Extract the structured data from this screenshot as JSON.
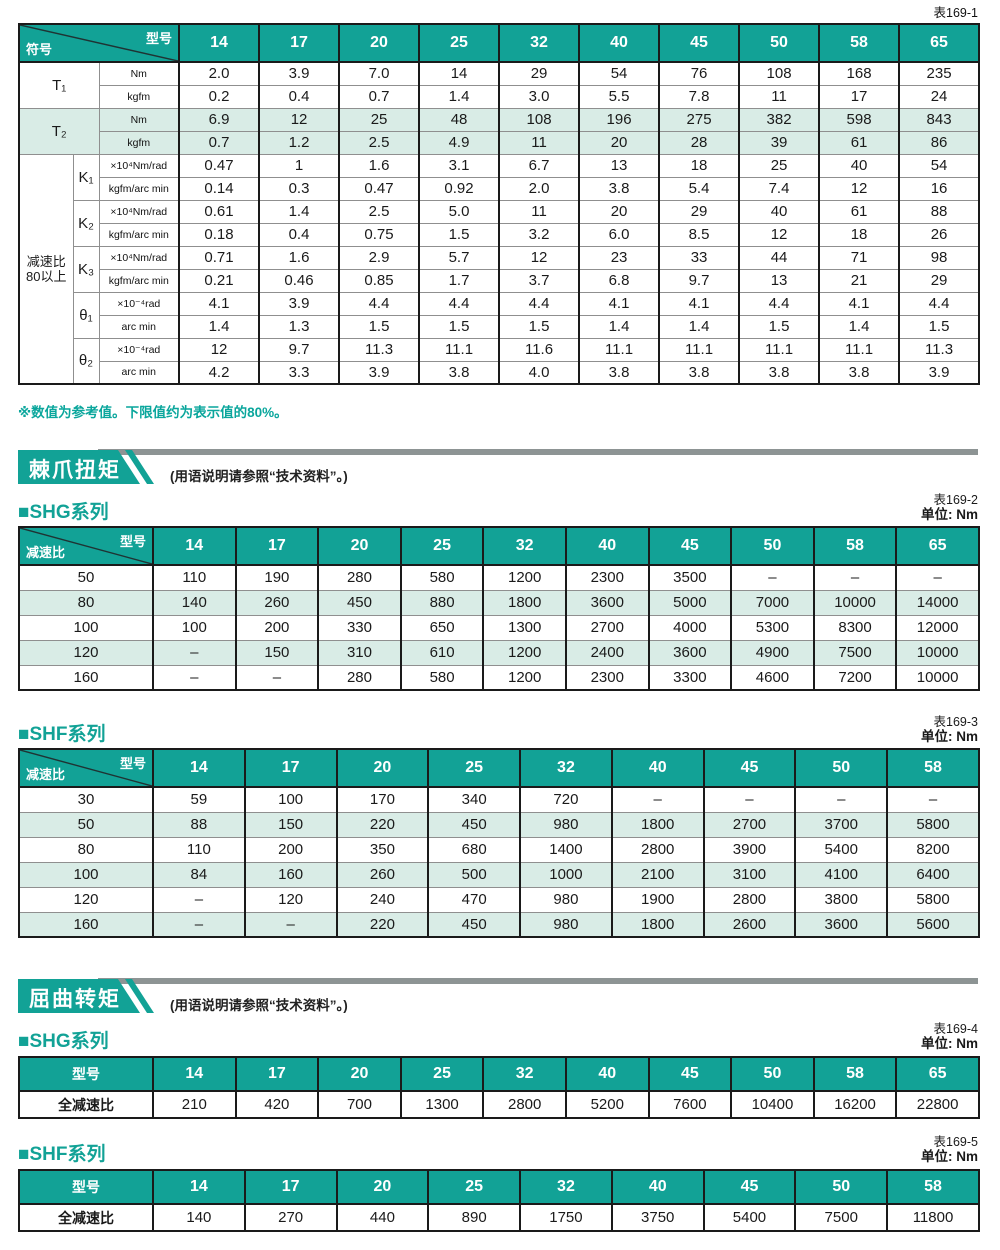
{
  "page": {
    "note": "※数值为参考值。下限值约为表示值的80%。"
  },
  "sections": [
    {
      "title": "棘爪扭矩",
      "note": "(用语说明请参照“技术资料”。)"
    },
    {
      "title": "屈曲转矩",
      "note": "(用语说明请参照“技术资料”。)"
    }
  ],
  "spec_table": {
    "tag": "表169-1",
    "corner_top": "型号",
    "corner_bottom": "符号",
    "models": [
      "14",
      "17",
      "20",
      "25",
      "32",
      "40",
      "45",
      "50",
      "58",
      "65"
    ],
    "row_group_label": [
      "减速比",
      "80以上"
    ],
    "groups": [
      {
        "symbol": "T₁",
        "merged": true,
        "shade": false,
        "rows": [
          {
            "unit": "Nm",
            "values": [
              "2.0",
              "3.9",
              "7.0",
              "14",
              "29",
              "54",
              "76",
              "108",
              "168",
              "235"
            ]
          },
          {
            "unit": "kgfm",
            "values": [
              "0.2",
              "0.4",
              "0.7",
              "1.4",
              "3.0",
              "5.5",
              "7.8",
              "11",
              "17",
              "24"
            ]
          }
        ]
      },
      {
        "symbol": "T₂",
        "merged": true,
        "shade": true,
        "rows": [
          {
            "unit": "Nm",
            "values": [
              "6.9",
              "12",
              "25",
              "48",
              "108",
              "196",
              "275",
              "382",
              "598",
              "843"
            ]
          },
          {
            "unit": "kgfm",
            "values": [
              "0.7",
              "1.2",
              "2.5",
              "4.9",
              "11",
              "20",
              "28",
              "39",
              "61",
              "86"
            ]
          }
        ]
      },
      {
        "symbol": "K₁",
        "merged": false,
        "shade": false,
        "rows": [
          {
            "unit": "×10⁴Nm/rad",
            "values": [
              "0.47",
              "1",
              "1.6",
              "3.1",
              "6.7",
              "13",
              "18",
              "25",
              "40",
              "54"
            ]
          },
          {
            "unit": "kgfm/arc min",
            "values": [
              "0.14",
              "0.3",
              "0.47",
              "0.92",
              "2.0",
              "3.8",
              "5.4",
              "7.4",
              "12",
              "16"
            ]
          }
        ]
      },
      {
        "symbol": "K₂",
        "merged": false,
        "shade": false,
        "rows": [
          {
            "unit": "×10⁴Nm/rad",
            "values": [
              "0.61",
              "1.4",
              "2.5",
              "5.0",
              "11",
              "20",
              "29",
              "40",
              "61",
              "88"
            ]
          },
          {
            "unit": "kgfm/arc min",
            "values": [
              "0.18",
              "0.4",
              "0.75",
              "1.5",
              "3.2",
              "6.0",
              "8.5",
              "12",
              "18",
              "26"
            ]
          }
        ]
      },
      {
        "symbol": "K₃",
        "merged": false,
        "shade": false,
        "rows": [
          {
            "unit": "×10⁴Nm/rad",
            "values": [
              "0.71",
              "1.6",
              "2.9",
              "5.7",
              "12",
              "23",
              "33",
              "44",
              "71",
              "98"
            ]
          },
          {
            "unit": "kgfm/arc min",
            "values": [
              "0.21",
              "0.46",
              "0.85",
              "1.7",
              "3.7",
              "6.8",
              "9.7",
              "13",
              "21",
              "29"
            ]
          }
        ]
      },
      {
        "symbol": "θ₁",
        "merged": false,
        "shade": false,
        "rows": [
          {
            "unit": "×10⁻⁴rad",
            "values": [
              "4.1",
              "3.9",
              "4.4",
              "4.4",
              "4.4",
              "4.1",
              "4.1",
              "4.4",
              "4.1",
              "4.4"
            ]
          },
          {
            "unit": "arc min",
            "values": [
              "1.4",
              "1.3",
              "1.5",
              "1.5",
              "1.5",
              "1.4",
              "1.4",
              "1.5",
              "1.4",
              "1.5"
            ]
          }
        ]
      },
      {
        "symbol": "θ₂",
        "merged": false,
        "shade": false,
        "rows": [
          {
            "unit": "×10⁻⁴rad",
            "values": [
              "12",
              "9.7",
              "11.3",
              "11.1",
              "11.6",
              "11.1",
              "11.1",
              "11.1",
              "11.1",
              "11.3"
            ]
          },
          {
            "unit": "arc min",
            "values": [
              "4.2",
              "3.3",
              "3.9",
              "3.8",
              "4.0",
              "3.8",
              "3.8",
              "3.8",
              "3.8",
              "3.9"
            ]
          }
        ]
      }
    ]
  },
  "ratchet_tables": [
    {
      "tag": "表169-2",
      "unit_label": "单位: Nm",
      "series": "■SHG系列",
      "corner_top": "型号",
      "corner_bottom": "减速比",
      "models": [
        "14",
        "17",
        "20",
        "25",
        "32",
        "40",
        "45",
        "50",
        "58",
        "65"
      ],
      "rows": [
        {
          "ratio": "50",
          "values": [
            "110",
            "190",
            "280",
            "580",
            "1200",
            "2300",
            "3500",
            "–",
            "–",
            "–"
          ]
        },
        {
          "ratio": "80",
          "values": [
            "140",
            "260",
            "450",
            "880",
            "1800",
            "3600",
            "5000",
            "7000",
            "10000",
            "14000"
          ]
        },
        {
          "ratio": "100",
          "values": [
            "100",
            "200",
            "330",
            "650",
            "1300",
            "2700",
            "4000",
            "5300",
            "8300",
            "12000"
          ]
        },
        {
          "ratio": "120",
          "values": [
            "–",
            "150",
            "310",
            "610",
            "1200",
            "2400",
            "3600",
            "4900",
            "7500",
            "10000"
          ]
        },
        {
          "ratio": "160",
          "values": [
            "–",
            "–",
            "280",
            "580",
            "1200",
            "2300",
            "3300",
            "4600",
            "7200",
            "10000"
          ]
        }
      ]
    },
    {
      "tag": "表169-3",
      "unit_label": "单位: Nm",
      "series": "■SHF系列",
      "corner_top": "型号",
      "corner_bottom": "减速比",
      "models": [
        "14",
        "17",
        "20",
        "25",
        "32",
        "40",
        "45",
        "50",
        "58"
      ],
      "rows": [
        {
          "ratio": "30",
          "values": [
            "59",
            "100",
            "170",
            "340",
            "720",
            "–",
            "–",
            "–",
            "–"
          ]
        },
        {
          "ratio": "50",
          "values": [
            "88",
            "150",
            "220",
            "450",
            "980",
            "1800",
            "2700",
            "3700",
            "5800"
          ]
        },
        {
          "ratio": "80",
          "values": [
            "110",
            "200",
            "350",
            "680",
            "1400",
            "2800",
            "3900",
            "5400",
            "8200"
          ]
        },
        {
          "ratio": "100",
          "values": [
            "84",
            "160",
            "260",
            "500",
            "1000",
            "2100",
            "3100",
            "4100",
            "6400"
          ]
        },
        {
          "ratio": "120",
          "values": [
            "–",
            "120",
            "240",
            "470",
            "980",
            "1900",
            "2800",
            "3800",
            "5800"
          ]
        },
        {
          "ratio": "160",
          "values": [
            "–",
            "–",
            "220",
            "450",
            "980",
            "1800",
            "2600",
            "3600",
            "5600"
          ]
        }
      ]
    }
  ],
  "buckling_tables": [
    {
      "tag": "表169-4",
      "unit_label": "单位: Nm",
      "series": "■SHG系列",
      "header_label": "型号",
      "row_label": "全减速比",
      "models": [
        "14",
        "17",
        "20",
        "25",
        "32",
        "40",
        "45",
        "50",
        "58",
        "65"
      ],
      "values": [
        "210",
        "420",
        "700",
        "1300",
        "2800",
        "5200",
        "7600",
        "10400",
        "16200",
        "22800"
      ]
    },
    {
      "tag": "表169-5",
      "unit_label": "单位: Nm",
      "series": "■SHF系列",
      "header_label": "型号",
      "row_label": "全减速比",
      "models": [
        "14",
        "17",
        "20",
        "25",
        "32",
        "40",
        "45",
        "50",
        "58"
      ],
      "values": [
        "140",
        "270",
        "440",
        "890",
        "1750",
        "3750",
        "5400",
        "7500",
        "11800"
      ]
    }
  ]
}
